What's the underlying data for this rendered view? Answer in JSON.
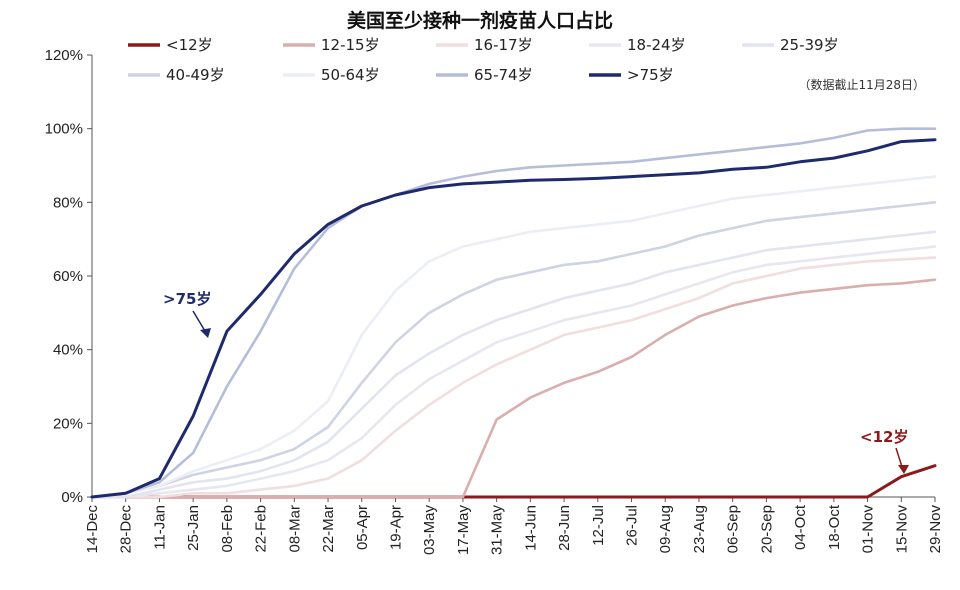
{
  "chart_data": {
    "type": "line",
    "title": "美国至少接种一剂疫苗人口占比",
    "note": "（数据截止11月28日）",
    "xlabel": "",
    "ylabel": "",
    "ylim": [
      0,
      120
    ],
    "yticks": [
      "0%",
      "20%",
      "40%",
      "60%",
      "80%",
      "100%",
      "120%"
    ],
    "x": [
      "14-Dec",
      "28-Dec",
      "11-Jan",
      "25-Jan",
      "08-Feb",
      "22-Feb",
      "08-Mar",
      "22-Mar",
      "05-Apr",
      "19-Apr",
      "03-May",
      "17-May",
      "31-May",
      "14-Jun",
      "28-Jun",
      "12-Jul",
      "26-Jul",
      "09-Aug",
      "23-Aug",
      "06-Sep",
      "20-Sep",
      "04-Oct",
      "18-Oct",
      "01-Nov",
      "15-Nov",
      "29-Nov"
    ],
    "grid": false,
    "legend_position": "top",
    "annotations": [
      {
        "text": ">75岁",
        "series": ">75岁",
        "color": "#1f2a6e"
      },
      {
        "text": "<12岁",
        "series": "<12岁",
        "color": "#8b1a1a"
      }
    ],
    "series": [
      {
        "name": "<12岁",
        "color": "#8b1a1a",
        "values": [
          0,
          0,
          0,
          0,
          0,
          0,
          0,
          0,
          0,
          0,
          0,
          0,
          0,
          0,
          0,
          0,
          0,
          0,
          0,
          0,
          0,
          0,
          0,
          0,
          5.5,
          8.5
        ]
      },
      {
        "name": "12-15岁",
        "color": "#d9aeae",
        "values": [
          0,
          0,
          0,
          0,
          0,
          0,
          0,
          0,
          0,
          0,
          0,
          0,
          21,
          27,
          31,
          34,
          38,
          44,
          49,
          52,
          54,
          55.5,
          56.5,
          57.5,
          58,
          59
        ]
      },
      {
        "name": "16-17岁",
        "color": "#f1dede",
        "values": [
          0,
          0,
          0,
          1,
          1,
          2,
          3,
          5,
          10,
          18,
          25,
          31,
          36,
          40,
          44,
          46,
          48,
          51,
          54,
          58,
          60,
          62,
          63,
          64,
          64.5,
          65
        ]
      },
      {
        "name": "18-24岁",
        "color": "#e7e7f0",
        "values": [
          0,
          0,
          1,
          2,
          3,
          5,
          7,
          10,
          16,
          25,
          32,
          37,
          42,
          45,
          48,
          50,
          52,
          55,
          58,
          61,
          63,
          64,
          65,
          66,
          67,
          68
        ]
      },
      {
        "name": "25-39岁",
        "color": "#e2e4ef",
        "values": [
          0,
          0,
          2,
          4,
          5,
          7,
          10,
          15,
          24,
          33,
          39,
          44,
          48,
          51,
          54,
          56,
          58,
          61,
          63,
          65,
          67,
          68,
          69,
          70,
          71,
          72
        ]
      },
      {
        "name": "40-49岁",
        "color": "#cfd3e3",
        "values": [
          0,
          1,
          3,
          6,
          8,
          10,
          13,
          19,
          31,
          42,
          50,
          55,
          59,
          61,
          63,
          64,
          66,
          68,
          71,
          73,
          75,
          76,
          77,
          78,
          79,
          80
        ]
      },
      {
        "name": "50-64岁",
        "color": "#eceef6",
        "values": [
          0,
          1,
          3,
          7,
          10,
          13,
          18,
          26,
          44,
          56,
          64,
          68,
          70,
          72,
          73,
          74,
          75,
          77,
          79,
          81,
          82,
          83,
          84,
          85,
          86,
          87
        ]
      },
      {
        "name": "65-74岁",
        "color": "#b5bdd9",
        "values": [
          0,
          1,
          4,
          12,
          30,
          45,
          62,
          73,
          79,
          82,
          85,
          87,
          88.5,
          89.5,
          90,
          90.5,
          91,
          92,
          93,
          94,
          95,
          96,
          97.5,
          99.5,
          100,
          100
        ]
      },
      {
        "name": ">75岁",
        "color": "#1f2a6e",
        "values": [
          0,
          1,
          5,
          22,
          45,
          55,
          66,
          74,
          79,
          82,
          84,
          85,
          85.5,
          86,
          86.2,
          86.5,
          87,
          87.5,
          88,
          89,
          89.5,
          91,
          92,
          94,
          96.5,
          97
        ]
      }
    ]
  }
}
